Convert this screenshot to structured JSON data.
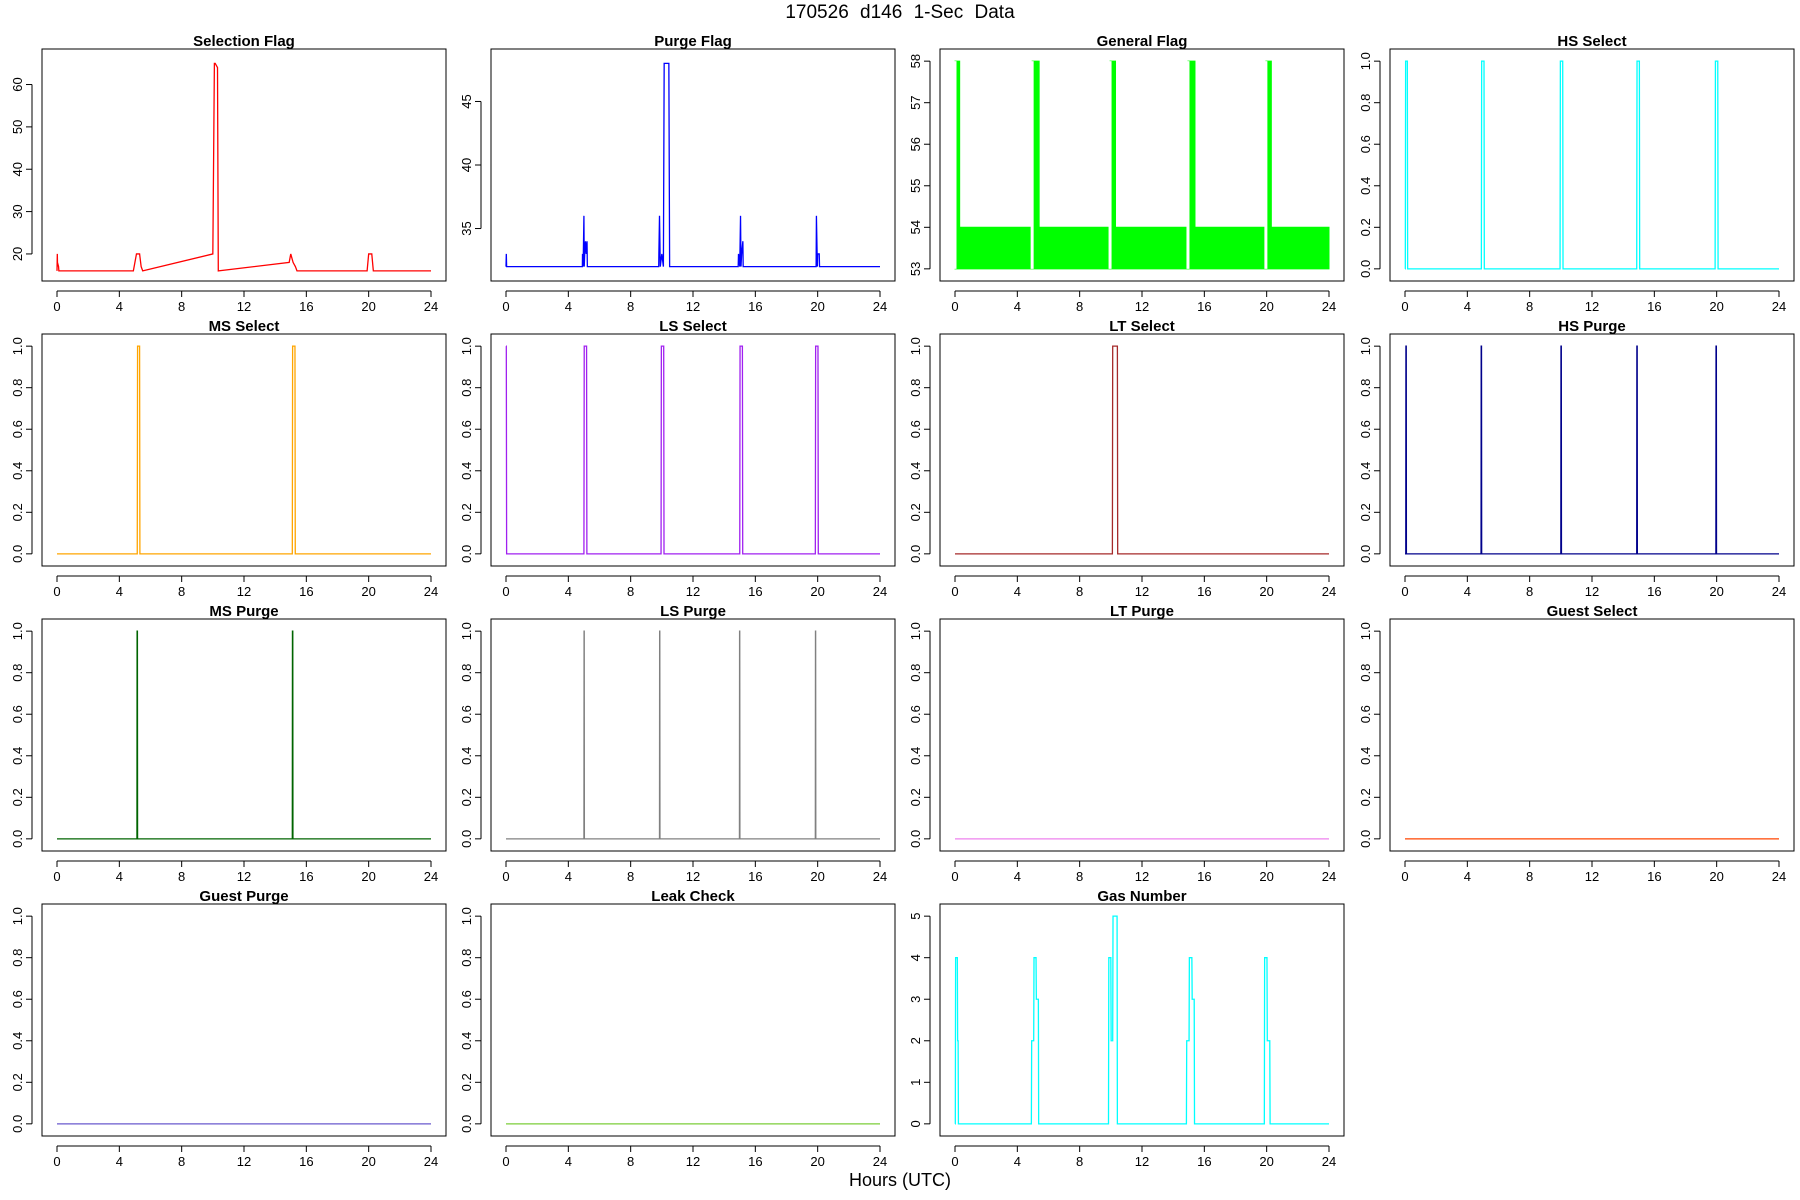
{
  "title": "170526   d146   1-Sec Data",
  "xlabel": "Hours (UTC)",
  "chart_data": [
    {
      "type": "line",
      "title": "Selection Flag",
      "color": "#ff0000",
      "xlim": [
        0,
        24
      ],
      "ylim": [
        15.5,
        66.5
      ],
      "xticks": [
        0,
        4,
        8,
        12,
        16,
        20,
        24
      ],
      "yticks": [
        20,
        30,
        40,
        50,
        60
      ],
      "x": [
        0,
        0.02,
        0.03,
        0.1,
        0.12,
        0.2,
        4.9,
        5.0,
        5.1,
        5.3,
        5.4,
        5.5,
        10.0,
        10.1,
        10.15,
        10.3,
        10.35,
        14.9,
        15.0,
        15.15,
        15.3,
        15.4,
        19.9,
        20.0,
        20.2,
        20.3,
        24
      ],
      "y": [
        16,
        20,
        18,
        17,
        16,
        16,
        16,
        18,
        20,
        20,
        17,
        16,
        20,
        65,
        65,
        64,
        16,
        18,
        20,
        18,
        17,
        16,
        16,
        20,
        20,
        16,
        16
      ]
    },
    {
      "type": "line",
      "title": "Purge Flag",
      "color": "#0000ff",
      "xlim": [
        0,
        24
      ],
      "ylim": [
        31.5,
        48.5
      ],
      "xticks": [
        0,
        4,
        8,
        12,
        16,
        20,
        24
      ],
      "yticks": [
        35,
        40,
        45
      ],
      "x": [
        0,
        0.02,
        0.04,
        4.9,
        4.91,
        4.95,
        5.0,
        5.02,
        5.05,
        5.1,
        5.15,
        5.2,
        5.22,
        9.8,
        9.81,
        9.85,
        9.9,
        10.0,
        10.1,
        10.15,
        10.45,
        10.5,
        14.9,
        14.92,
        15.0,
        15.05,
        15.08,
        15.12,
        15.2,
        15.22,
        19.9,
        19.92,
        19.98,
        20.0,
        20.1,
        20.12,
        24
      ],
      "y": [
        32,
        33,
        32,
        32,
        33,
        32,
        36,
        32,
        33,
        34,
        33,
        34,
        32,
        32,
        33,
        36,
        32,
        33,
        32,
        48,
        48,
        32,
        32,
        33,
        32,
        36,
        32,
        33,
        34,
        32,
        32,
        36,
        32,
        33,
        33,
        32,
        32
      ]
    },
    {
      "type": "area",
      "title": "General Flag",
      "color": "#00ff00",
      "xlim": [
        0,
        24
      ],
      "ylim": [
        52.9,
        58.1
      ],
      "xticks": [
        0,
        4,
        8,
        12,
        16,
        20,
        24
      ],
      "yticks": [
        53,
        54,
        55,
        56,
        57,
        58
      ],
      "x": [
        0,
        0.3,
        4.95,
        5.4,
        9.95,
        10.3,
        14.95,
        15.4,
        19.95,
        20.3,
        24
      ],
      "y": [
        58,
        54,
        58,
        54,
        58,
        54,
        58,
        54,
        58,
        54,
        54
      ]
    },
    {
      "type": "line",
      "title": "HS Select",
      "color": "#00ffff",
      "xlim": [
        0,
        24
      ],
      "ylim": [
        -0.02,
        1.02
      ],
      "xticks": [
        0,
        4,
        8,
        12,
        16,
        20,
        24
      ],
      "yticks": [
        0.0,
        0.2,
        0.4,
        0.6,
        0.8,
        1.0
      ],
      "x": [
        0,
        0.02,
        0.04,
        0.15,
        0.17,
        4.9,
        4.92,
        5.07,
        5.09,
        9.95,
        9.97,
        10.12,
        10.14,
        14.87,
        14.89,
        15.04,
        15.06,
        19.9,
        19.92,
        20.07,
        20.09,
        24
      ],
      "y": [
        0,
        0,
        1,
        1,
        0,
        0,
        1,
        1,
        0,
        0,
        1,
        1,
        0,
        0,
        1,
        1,
        0,
        0,
        1,
        1,
        0,
        0
      ]
    },
    {
      "type": "line",
      "title": "MS Select",
      "color": "#ffa500",
      "xlim": [
        0,
        24
      ],
      "ylim": [
        -0.02,
        1.02
      ],
      "xticks": [
        0,
        4,
        8,
        12,
        16,
        20,
        24
      ],
      "yticks": [
        0.0,
        0.2,
        0.4,
        0.6,
        0.8,
        1.0
      ],
      "x": [
        0,
        5.15,
        5.17,
        5.3,
        5.32,
        15.1,
        15.12,
        15.27,
        15.29,
        24
      ],
      "y": [
        0,
        0,
        1,
        1,
        0,
        0,
        1,
        1,
        0,
        0
      ]
    },
    {
      "type": "line",
      "title": "LS Select",
      "color": "#a020f0",
      "xlim": [
        0,
        24
      ],
      "ylim": [
        -0.02,
        1.02
      ],
      "xticks": [
        0,
        4,
        8,
        12,
        16,
        20,
        24
      ],
      "yticks": [
        0.0,
        0.2,
        0.4,
        0.6,
        0.8,
        1.0
      ],
      "x": [
        0,
        0.02,
        0.04,
        0.06,
        5.0,
        5.02,
        5.17,
        5.19,
        9.95,
        9.97,
        10.12,
        10.14,
        15.0,
        15.02,
        15.17,
        15.19,
        19.85,
        19.87,
        20.02,
        20.04,
        24
      ],
      "y": [
        1,
        1,
        0,
        0,
        0,
        1,
        1,
        0,
        0,
        1,
        1,
        0,
        0,
        1,
        1,
        0,
        0,
        1,
        1,
        0,
        0
      ]
    },
    {
      "type": "line",
      "title": "LT Select",
      "color": "#a52a2a",
      "xlim": [
        0,
        24
      ],
      "ylim": [
        -0.02,
        1.02
      ],
      "xticks": [
        0,
        4,
        8,
        12,
        16,
        20,
        24
      ],
      "yticks": [
        0.0,
        0.2,
        0.4,
        0.6,
        0.8,
        1.0
      ],
      "x": [
        0,
        10.1,
        10.12,
        10.42,
        10.44,
        24
      ],
      "y": [
        0,
        0,
        1,
        1,
        0,
        0
      ]
    },
    {
      "type": "line",
      "title": "HS Purge",
      "color": "#00008b",
      "xlim": [
        0,
        24
      ],
      "ylim": [
        -0.02,
        1.02
      ],
      "xticks": [
        0,
        4,
        8,
        12,
        16,
        20,
        24
      ],
      "yticks": [
        0.0,
        0.2,
        0.4,
        0.6,
        0.8,
        1.0
      ],
      "x": [
        0,
        0.05,
        0.06,
        0.08,
        0.09,
        4.88,
        4.89,
        4.91,
        4.92,
        10.0,
        10.01,
        10.03,
        10.04,
        14.87,
        14.88,
        14.9,
        14.91,
        19.95,
        19.96,
        19.98,
        19.99,
        24
      ],
      "y": [
        0,
        0,
        1,
        1,
        0,
        0,
        1,
        1,
        0,
        0,
        1,
        1,
        0,
        0,
        1,
        1,
        0,
        0,
        1,
        1,
        0,
        0
      ]
    },
    {
      "type": "line",
      "title": "MS Purge",
      "color": "#006400",
      "xlim": [
        0,
        24
      ],
      "ylim": [
        -0.02,
        1.02
      ],
      "xticks": [
        0,
        4,
        8,
        12,
        16,
        20,
        24
      ],
      "yticks": [
        0.0,
        0.2,
        0.4,
        0.6,
        0.8,
        1.0
      ],
      "x": [
        0,
        5.13,
        5.14,
        5.16,
        5.17,
        15.1,
        15.11,
        15.13,
        15.14,
        24
      ],
      "y": [
        0,
        0,
        1,
        1,
        0,
        0,
        1,
        1,
        0,
        0
      ]
    },
    {
      "type": "line",
      "title": "LS Purge",
      "color": "#808080",
      "xlim": [
        0,
        24
      ],
      "ylim": [
        -0.02,
        1.02
      ],
      "xticks": [
        0,
        4,
        8,
        12,
        16,
        20,
        24
      ],
      "yticks": [
        0.0,
        0.2,
        0.4,
        0.6,
        0.8,
        1.0
      ],
      "x": [
        0,
        5.0,
        5.01,
        5.02,
        5.03,
        9.85,
        9.86,
        9.87,
        9.88,
        14.98,
        14.99,
        15.0,
        15.01,
        19.85,
        19.86,
        19.87,
        19.88,
        24
      ],
      "y": [
        0,
        0,
        1,
        1,
        0,
        0,
        1,
        1,
        0,
        0,
        1,
        1,
        0,
        0,
        1,
        1,
        0,
        0
      ]
    },
    {
      "type": "line",
      "title": "LT Purge",
      "color": "#ee82ee",
      "xlim": [
        0,
        24
      ],
      "ylim": [
        -0.02,
        1.02
      ],
      "xticks": [
        0,
        4,
        8,
        12,
        16,
        20,
        24
      ],
      "yticks": [
        0.0,
        0.2,
        0.4,
        0.6,
        0.8,
        1.0
      ],
      "x": [
        0,
        24
      ],
      "y": [
        0,
        0
      ]
    },
    {
      "type": "line",
      "title": "Guest Select",
      "color": "#ff4500",
      "xlim": [
        0,
        24
      ],
      "ylim": [
        -0.02,
        1.02
      ],
      "xticks": [
        0,
        4,
        8,
        12,
        16,
        20,
        24
      ],
      "yticks": [
        0.0,
        0.2,
        0.4,
        0.6,
        0.8,
        1.0
      ],
      "x": [
        0,
        24
      ],
      "y": [
        0,
        0
      ]
    },
    {
      "type": "line",
      "title": "Guest Purge",
      "color": "#6a5acd",
      "xlim": [
        0,
        24
      ],
      "ylim": [
        -0.02,
        1.02
      ],
      "xticks": [
        0,
        4,
        8,
        12,
        16,
        20,
        24
      ],
      "yticks": [
        0.0,
        0.2,
        0.4,
        0.6,
        0.8,
        1.0
      ],
      "x": [
        0,
        24
      ],
      "y": [
        0,
        0
      ]
    },
    {
      "type": "line",
      "title": "Leak Check",
      "color": "#7ccd3a",
      "xlim": [
        0,
        24
      ],
      "ylim": [
        -0.02,
        1.02
      ],
      "xticks": [
        0,
        4,
        8,
        12,
        16,
        20,
        24
      ],
      "yticks": [
        0.0,
        0.2,
        0.4,
        0.6,
        0.8,
        1.0
      ],
      "x": [
        0,
        24
      ],
      "y": [
        0,
        0
      ]
    },
    {
      "type": "line",
      "title": "Gas Number",
      "color": "#00ffff",
      "xlim": [
        0,
        24
      ],
      "ylim": [
        -0.1,
        5.1
      ],
      "xticks": [
        0,
        4,
        8,
        12,
        16,
        20,
        24
      ],
      "yticks": [
        0,
        1,
        2,
        3,
        4,
        5
      ],
      "x": [
        0,
        0.02,
        0.04,
        0.15,
        0.17,
        0.2,
        0.22,
        4.9,
        4.92,
        5.05,
        5.07,
        5.2,
        5.22,
        5.35,
        5.37,
        9.85,
        9.87,
        10.0,
        10.02,
        10.12,
        10.14,
        10.4,
        10.42,
        14.85,
        14.87,
        15.02,
        15.04,
        15.2,
        15.22,
        15.35,
        15.37,
        19.85,
        19.87,
        20.02,
        20.04,
        20.2,
        20.22,
        24
      ],
      "y": [
        0,
        0,
        4,
        4,
        2,
        2,
        0,
        0,
        2,
        2,
        4,
        4,
        3,
        3,
        0,
        0,
        4,
        4,
        2,
        2,
        5,
        5,
        0,
        0,
        2,
        2,
        4,
        4,
        3,
        3,
        0,
        0,
        4,
        4,
        2,
        2,
        0,
        0
      ]
    }
  ]
}
